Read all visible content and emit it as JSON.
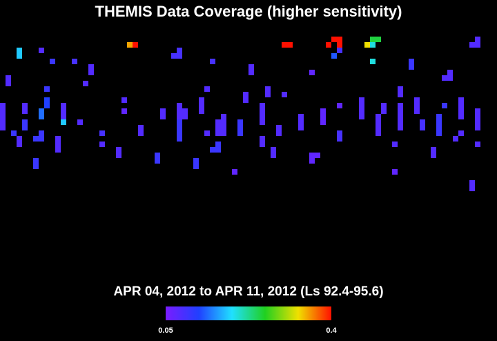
{
  "chart_data": {
    "type": "heatmap",
    "title": "THEMIS Data Coverage (higher sensitivity)",
    "subtitle": "APR 04, 2012 to APR 11, 2012 (Ls 92.4-95.6)",
    "xlim": [
      0,
      720
    ],
    "ylim": [
      0,
      240
    ],
    "clim": [
      0.05,
      0.4
    ],
    "colorbar_ticks": [
      0.05,
      0.4
    ],
    "x": [
      24,
      56,
      72,
      104,
      128,
      184,
      192,
      256,
      248,
      304,
      360,
      408,
      416,
      472,
      480,
      488,
      488,
      488,
      480,
      528,
      536,
      544,
      536,
      536,
      592,
      688,
      680,
      8,
      64,
      120,
      448,
      648,
      640,
      0,
      32,
      32,
      56,
      64,
      88,
      88,
      112,
      176,
      176,
      200,
      232,
      256,
      264,
      256,
      288,
      296,
      296,
      312,
      320,
      344,
      352,
      376,
      384,
      400,
      408,
      432,
      464,
      488,
      520,
      544,
      552,
      576,
      576,
      600,
      608,
      632,
      640,
      664,
      664,
      688,
      16,
      24,
      48,
      56,
      80,
      144,
      144,
      168,
      224,
      280,
      304,
      312,
      336,
      376,
      392,
      448,
      456,
      488,
      48,
      568,
      568,
      624,
      656,
      688,
      680
    ],
    "y": [
      21,
      21,
      37,
      37,
      45,
      13,
      13,
      21,
      29,
      37,
      45,
      13,
      13,
      13,
      5,
      5,
      13,
      21,
      29,
      13,
      5,
      5,
      13,
      37,
      37,
      5,
      13,
      61,
      77,
      69,
      53,
      53,
      61,
      101,
      101,
      125,
      109,
      93,
      101,
      125,
      125,
      93,
      109,
      133,
      109,
      101,
      109,
      125,
      93,
      77,
      141,
      125,
      117,
      125,
      85,
      101,
      77,
      133,
      85,
      117,
      109,
      101,
      93,
      117,
      101,
      77,
      101,
      93,
      125,
      117,
      101,
      93,
      141,
      109,
      141,
      149,
      149,
      141,
      149,
      141,
      157,
      165,
      173,
      181,
      165,
      157,
      197,
      149,
      165,
      173,
      173,
      141,
      181,
      157,
      197,
      165,
      149,
      157,
      213
    ],
    "heights": [
      16,
      8,
      8,
      8,
      16,
      8,
      8,
      16,
      8,
      8,
      16,
      8,
      8,
      8,
      8,
      8,
      8,
      8,
      8,
      8,
      8,
      8,
      8,
      8,
      16,
      16,
      8,
      16,
      8,
      8,
      8,
      16,
      8,
      40,
      16,
      16,
      16,
      16,
      24,
      8,
      8,
      8,
      8,
      16,
      16,
      24,
      16,
      32,
      24,
      8,
      8,
      24,
      32,
      24,
      16,
      32,
      16,
      16,
      8,
      24,
      24,
      8,
      32,
      32,
      16,
      16,
      40,
      24,
      16,
      32,
      8,
      32,
      8,
      32,
      8,
      16,
      8,
      16,
      24,
      8,
      8,
      16,
      16,
      16,
      8,
      16,
      8,
      16,
      16,
      16,
      8,
      16,
      16,
      8,
      8,
      16,
      8,
      8,
      16
    ],
    "values": [
      0.18,
      0.08,
      0.1,
      0.09,
      0.08,
      0.35,
      0.4,
      0.09,
      0.09,
      0.09,
      0.08,
      0.4,
      0.4,
      0.4,
      0.4,
      0.4,
      0.4,
      0.09,
      0.13,
      0.33,
      0.25,
      0.25,
      0.2,
      0.2,
      0.1,
      0.08,
      0.08,
      0.08,
      0.1,
      0.08,
      0.07,
      0.08,
      0.08,
      0.08,
      0.08,
      0.1,
      0.14,
      0.12,
      0.08,
      0.18,
      0.08,
      0.08,
      0.07,
      0.08,
      0.08,
      0.08,
      0.08,
      0.1,
      0.08,
      0.08,
      0.08,
      0.08,
      0.08,
      0.1,
      0.08,
      0.08,
      0.08,
      0.08,
      0.08,
      0.08,
      0.07,
      0.07,
      0.08,
      0.08,
      0.08,
      0.08,
      0.08,
      0.08,
      0.09,
      0.1,
      0.1,
      0.08,
      0.08,
      0.08,
      0.1,
      0.08,
      0.1,
      0.1,
      0.08,
      0.09,
      0.08,
      0.08,
      0.1,
      0.1,
      0.1,
      0.1,
      0.07,
      0.08,
      0.08,
      0.07,
      0.07,
      0.09,
      0.1,
      0.08,
      0.07,
      0.08,
      0.08,
      0.08,
      0.08
    ]
  }
}
